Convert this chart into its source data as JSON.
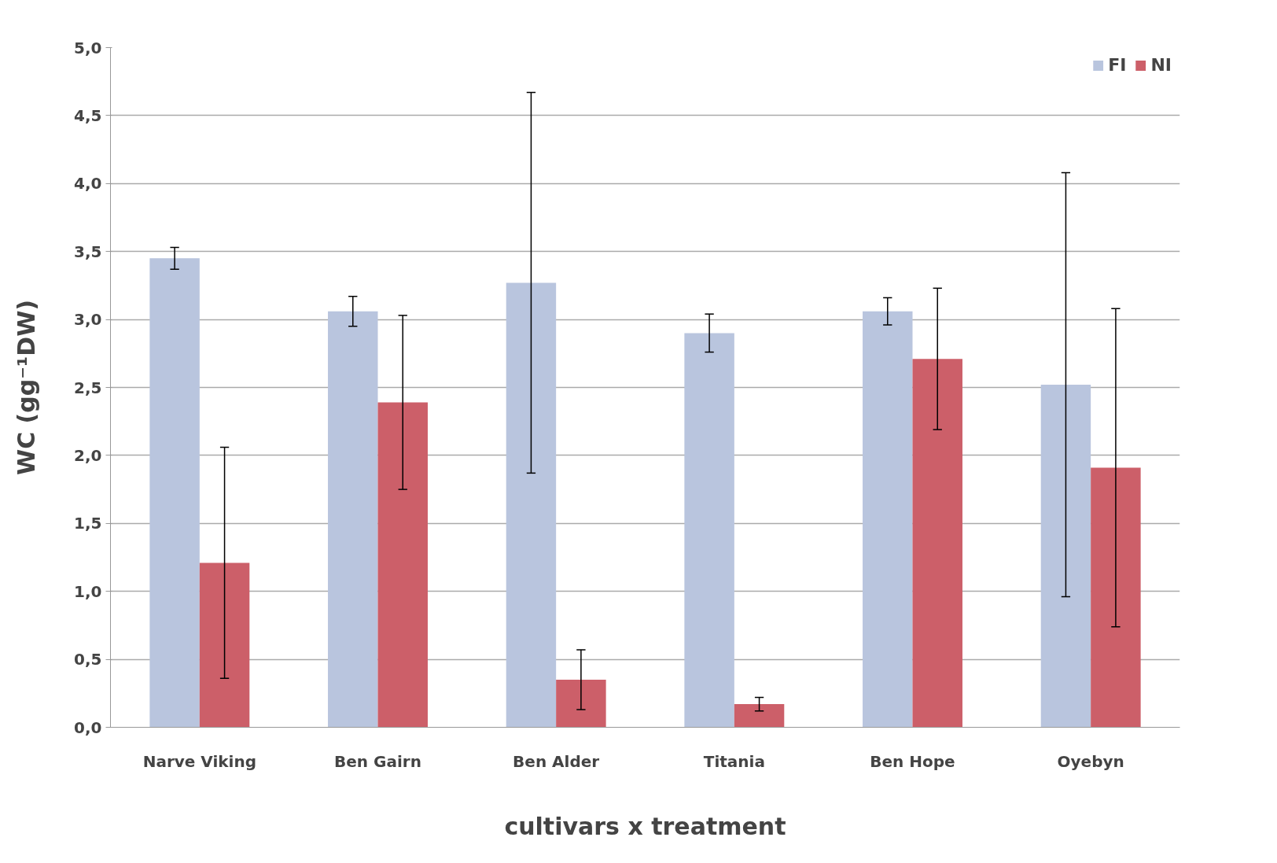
{
  "chart_data": {
    "type": "bar",
    "xlabel": "cultivars x treatment",
    "ylabel": "WC (gg⁻¹DW)",
    "categories": [
      "Narve Viking",
      "Ben Gairn",
      "Ben Alder",
      "Titania",
      "Ben Hope",
      "Oyebyn"
    ],
    "series": [
      {
        "name": "FI",
        "color": "#b9c5de",
        "values": [
          3.45,
          3.06,
          3.27,
          2.9,
          3.06,
          2.52
        ],
        "errors": [
          0.08,
          0.11,
          1.4,
          0.14,
          0.1,
          1.56
        ]
      },
      {
        "name": "NI",
        "color": "#cc5f69",
        "values": [
          1.21,
          2.39,
          0.35,
          0.17,
          2.71,
          1.91
        ],
        "errors": [
          0.85,
          0.64,
          0.22,
          0.05,
          0.52,
          1.17
        ]
      }
    ],
    "ylim": [
      0,
      5
    ],
    "yticks": [
      {
        "value": 0,
        "label": "0,0"
      },
      {
        "value": 0.5,
        "label": "0,5"
      },
      {
        "value": 1,
        "label": "1,0"
      },
      {
        "value": 1.5,
        "label": "1,5"
      },
      {
        "value": 2,
        "label": "2,0"
      },
      {
        "value": 2.5,
        "label": "2,5"
      },
      {
        "value": 3,
        "label": "3,0"
      },
      {
        "value": 3.5,
        "label": "3,5"
      },
      {
        "value": 4,
        "label": "4,0"
      },
      {
        "value": 4.5,
        "label": "4,5"
      },
      {
        "value": 5,
        "label": "5,0"
      }
    ],
    "grid": "y",
    "legend": "top right"
  }
}
